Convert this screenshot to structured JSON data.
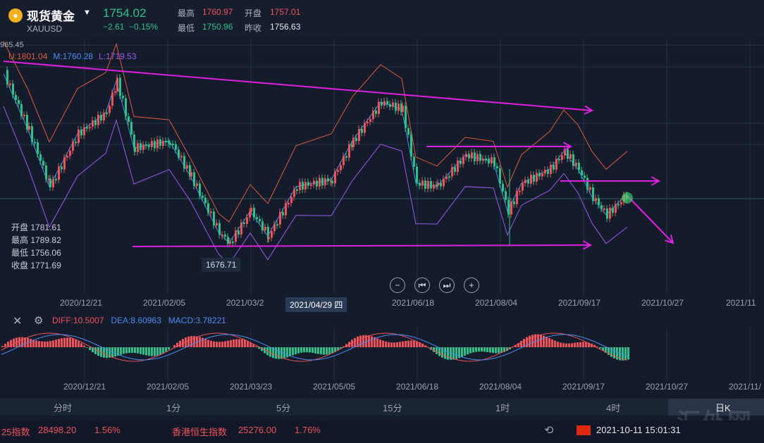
{
  "header": {
    "title": "现货黄金",
    "symbol": "XAUUSD",
    "price": "1754.02",
    "change": "−2.61",
    "change_pct": "−0.15%",
    "high_label": "最高",
    "high": "1760.97",
    "open_label": "开盘",
    "open": "1757.01",
    "low_label": "最低",
    "low": "1750.96",
    "prev_label": "昨收",
    "prev": "1756.63"
  },
  "boll": {
    "u": "U:1801.04",
    "m": "M:1760.28",
    "l": "L:1719.53"
  },
  "top_price": "965.45",
  "ohlc": [
    {
      "label": "开盘",
      "value": "1781.61"
    },
    {
      "label": "最高",
      "value": "1789.82"
    },
    {
      "label": "最低",
      "value": "1756.06"
    },
    {
      "label": "收盘",
      "value": "1771.69"
    }
  ],
  "low_marker": "1676.71",
  "x_labels": [
    "2020/12/21",
    "2021/02/05",
    "2021/03/2",
    "2021/06/18",
    "2021/08/04",
    "2021/09/17",
    "2021/10/27",
    "2021/11"
  ],
  "x_highlight": "2021/04/29 四",
  "macd": {
    "diff": "DIFF:10.5007",
    "dea": "DEA:8.60963",
    "macd": "MACD:3.78221"
  },
  "macd_x_labels": [
    "2020/12/21",
    "2021/02/05",
    "2021/03/23",
    "2021/05/05",
    "2021/06/18",
    "2021/08/04",
    "2021/09/17",
    "2021/10/27",
    "2021/11/"
  ],
  "timeframes": [
    "分时",
    "1分",
    "5分",
    "15分",
    "1时",
    "4时",
    "日K"
  ],
  "footer": {
    "idx1_name": "25指数",
    "idx1_value": "28498.20",
    "idx1_pct": "1.56%",
    "idx2_name": "香港恒生指数",
    "idx2_value": "25276.00",
    "idx2_pct": "1.76%",
    "datetime": "2021-10-11  15:01:31"
  },
  "watermark": "汇外网",
  "colors": {
    "up": "#f0525c",
    "down": "#2ec18a",
    "upper": "#e05a3a",
    "mid": "#4a8cf0",
    "lower": "#9b59f0",
    "trend": "#e020e0"
  }
}
